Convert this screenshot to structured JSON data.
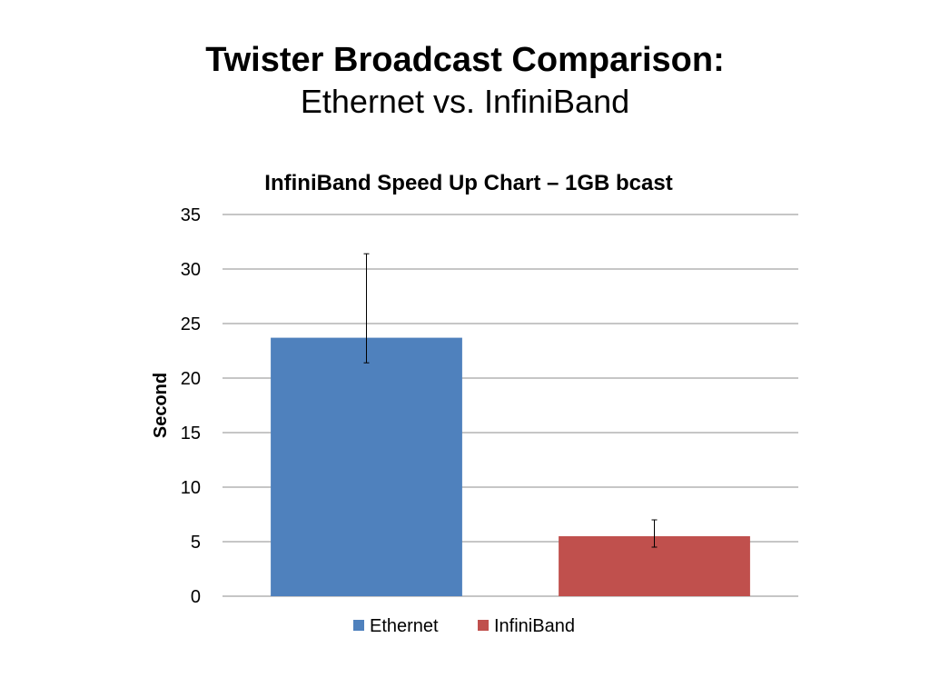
{
  "slide": {
    "title_line1": "Twister Broadcast Comparison:",
    "title_line2": "Ethernet vs. InfiniBand"
  },
  "chart_data": {
    "type": "bar",
    "title": "InfiniBand Speed Up Chart – 1GB bcast",
    "xlabel": "",
    "ylabel": "Second",
    "ylim": [
      0,
      35
    ],
    "yticks": [
      0,
      5,
      10,
      15,
      20,
      25,
      30,
      35
    ],
    "grid": true,
    "legend_position": "bottom",
    "series": [
      {
        "name": "Ethernet",
        "value": 23.7,
        "error_low": 21.4,
        "error_high": 31.4,
        "color": "#4F81BD"
      },
      {
        "name": "InfiniBand",
        "value": 5.5,
        "error_low": 4.5,
        "error_high": 7.0,
        "color": "#C0504D"
      }
    ]
  }
}
